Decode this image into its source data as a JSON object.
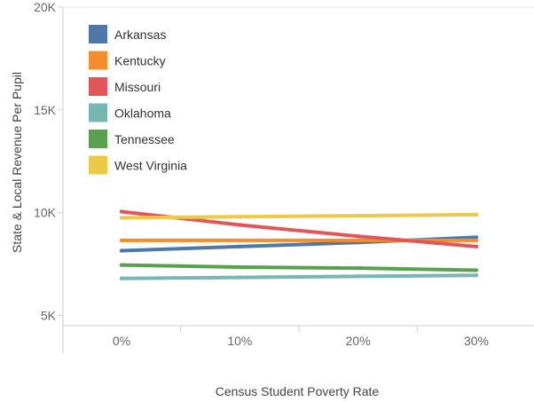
{
  "chart_data": {
    "type": "line",
    "title": "",
    "xlabel": "Census Student Poverty Rate",
    "ylabel": "State & Local Revenue Per Pupil",
    "x": [
      0,
      10,
      20,
      30
    ],
    "x_tick_labels": [
      "0%",
      "10%",
      "20%",
      "30%"
    ],
    "y_ticks": [
      5000,
      10000,
      15000,
      20000
    ],
    "y_tick_labels": [
      "5K",
      "10K",
      "15K",
      "20K"
    ],
    "ylim": [
      4500,
      20000
    ],
    "grid": false,
    "legend_position": "top-left",
    "series": [
      {
        "name": "Arkansas",
        "color": "#4e79a7",
        "values": [
          8150,
          8350,
          8550,
          8800
        ]
      },
      {
        "name": "Kentucky",
        "color": "#f28e2b",
        "values": [
          8650,
          8650,
          8650,
          8650
        ]
      },
      {
        "name": "Missouri",
        "color": "#e15759",
        "values": [
          10050,
          9400,
          8850,
          8350
        ]
      },
      {
        "name": "Oklahoma",
        "color": "#76b7b2",
        "values": [
          6800,
          6850,
          6900,
          6950
        ]
      },
      {
        "name": "Tennessee",
        "color": "#59a14f",
        "values": [
          7450,
          7350,
          7300,
          7200
        ]
      },
      {
        "name": "West Virginia",
        "color": "#edc948",
        "values": [
          9750,
          9800,
          9850,
          9900
        ]
      }
    ]
  }
}
